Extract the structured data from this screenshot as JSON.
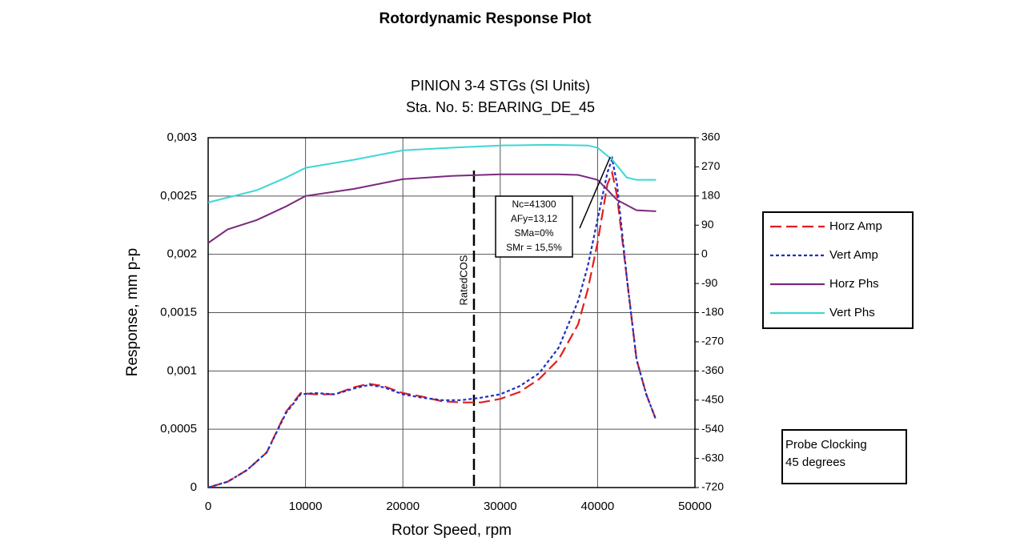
{
  "chart_data": {
    "type": "line",
    "title": "Rotordynamic Response Plot",
    "subtitle": [
      "PINION 3-4 STGs (SI Units)",
      "Sta. No. 5: BEARING_DE_45"
    ],
    "xlabel": "Rotor Speed, rpm",
    "ylabel": "Response, mm p-p",
    "xlim": [
      0,
      50000
    ],
    "xticks": [
      0,
      10000,
      20000,
      30000,
      40000,
      50000
    ],
    "ylim": [
      0,
      0.003
    ],
    "yticks": [
      {
        "value": 0.003,
        "label": "0,003"
      },
      {
        "value": 0.0025,
        "label": "0,0025"
      },
      {
        "value": 0.002,
        "label": "0,002"
      },
      {
        "value": 0.0015,
        "label": "0,0015"
      },
      {
        "value": 0.001,
        "label": "0,001"
      },
      {
        "value": 0.0005,
        "label": "0,0005"
      },
      0
    ],
    "y2lim": [
      -720,
      360
    ],
    "y2ticks": [
      360,
      270,
      180,
      90,
      0,
      -90,
      -180,
      -270,
      -360,
      -450,
      -540,
      -630,
      -720
    ],
    "grid": true,
    "legend": "right",
    "series": [
      {
        "name": "Horz Amp",
        "color": "#e0201e",
        "dash": "dashed",
        "x": [
          0,
          2000,
          4000,
          6000,
          8000,
          9500,
          11000,
          13000,
          15000,
          16500,
          18000,
          20000,
          22000,
          24000,
          26000,
          28000,
          30000,
          32000,
          34000,
          36000,
          38000,
          39000,
          40000,
          41000,
          41500,
          42000,
          43000,
          44000,
          45000,
          46000
        ],
        "values": [
          0,
          5e-05,
          0.00015,
          0.0003,
          0.00065,
          0.00081,
          0.0008,
          0.0008,
          0.00086,
          0.00089,
          0.00087,
          0.00081,
          0.00078,
          0.00074,
          0.00073,
          0.00073,
          0.00076,
          0.00082,
          0.00093,
          0.0011,
          0.0014,
          0.0017,
          0.0021,
          0.0026,
          0.0027,
          0.0025,
          0.0018,
          0.0011,
          0.0008,
          0.00058
        ]
      },
      {
        "name": "Vert Amp",
        "color": "#1f2fc0",
        "dash": "dotted",
        "x": [
          0,
          2000,
          4000,
          6000,
          8000,
          9500,
          11000,
          13000,
          15000,
          16500,
          18000,
          20000,
          22000,
          24000,
          26000,
          28000,
          30000,
          32000,
          34000,
          36000,
          38000,
          39000,
          40000,
          41000,
          41500,
          42000,
          43000,
          44000,
          45000,
          46000
        ],
        "values": [
          0,
          5e-05,
          0.00015,
          0.0003,
          0.00064,
          0.0008,
          0.00081,
          0.0008,
          0.00085,
          0.00088,
          0.00086,
          0.0008,
          0.00077,
          0.00075,
          0.00075,
          0.00077,
          0.0008,
          0.00087,
          0.00098,
          0.0012,
          0.0016,
          0.0019,
          0.0023,
          0.0027,
          0.00282,
          0.0026,
          0.0018,
          0.0011,
          0.0008,
          0.00058
        ]
      },
      {
        "name": "Horz Phs",
        "color": "#7a2a7e",
        "dash": "solid",
        "axis": "y2",
        "x": [
          0,
          2000,
          5000,
          8000,
          10000,
          15000,
          20000,
          25000,
          30000,
          36000,
          38000,
          40000,
          42000,
          44000,
          46000
        ],
        "values": [
          35,
          77,
          106,
          148,
          180,
          202,
          232,
          242,
          247,
          247,
          245,
          230,
          168,
          136,
          133
        ]
      },
      {
        "name": "Vert Phs",
        "color": "#3fd6d6",
        "dash": "solid",
        "axis": "y2",
        "x": [
          0,
          5000,
          8000,
          10000,
          15000,
          20000,
          25000,
          30000,
          35000,
          39000,
          40000,
          41500,
          43000,
          44000,
          46000
        ],
        "values": [
          160,
          198,
          237,
          267,
          292,
          321,
          329,
          336,
          338,
          336,
          329,
          292,
          237,
          230,
          230
        ]
      }
    ],
    "rated_line": {
      "x": 27300,
      "label": "RatedCOS"
    },
    "annotation": {
      "lines": [
        "Nc=41300",
        "AFy=13,12",
        "SMa=0%",
        "SMr = 15,5%"
      ],
      "x": 41300
    },
    "note": [
      "Probe Clocking",
      "45 degrees"
    ]
  }
}
